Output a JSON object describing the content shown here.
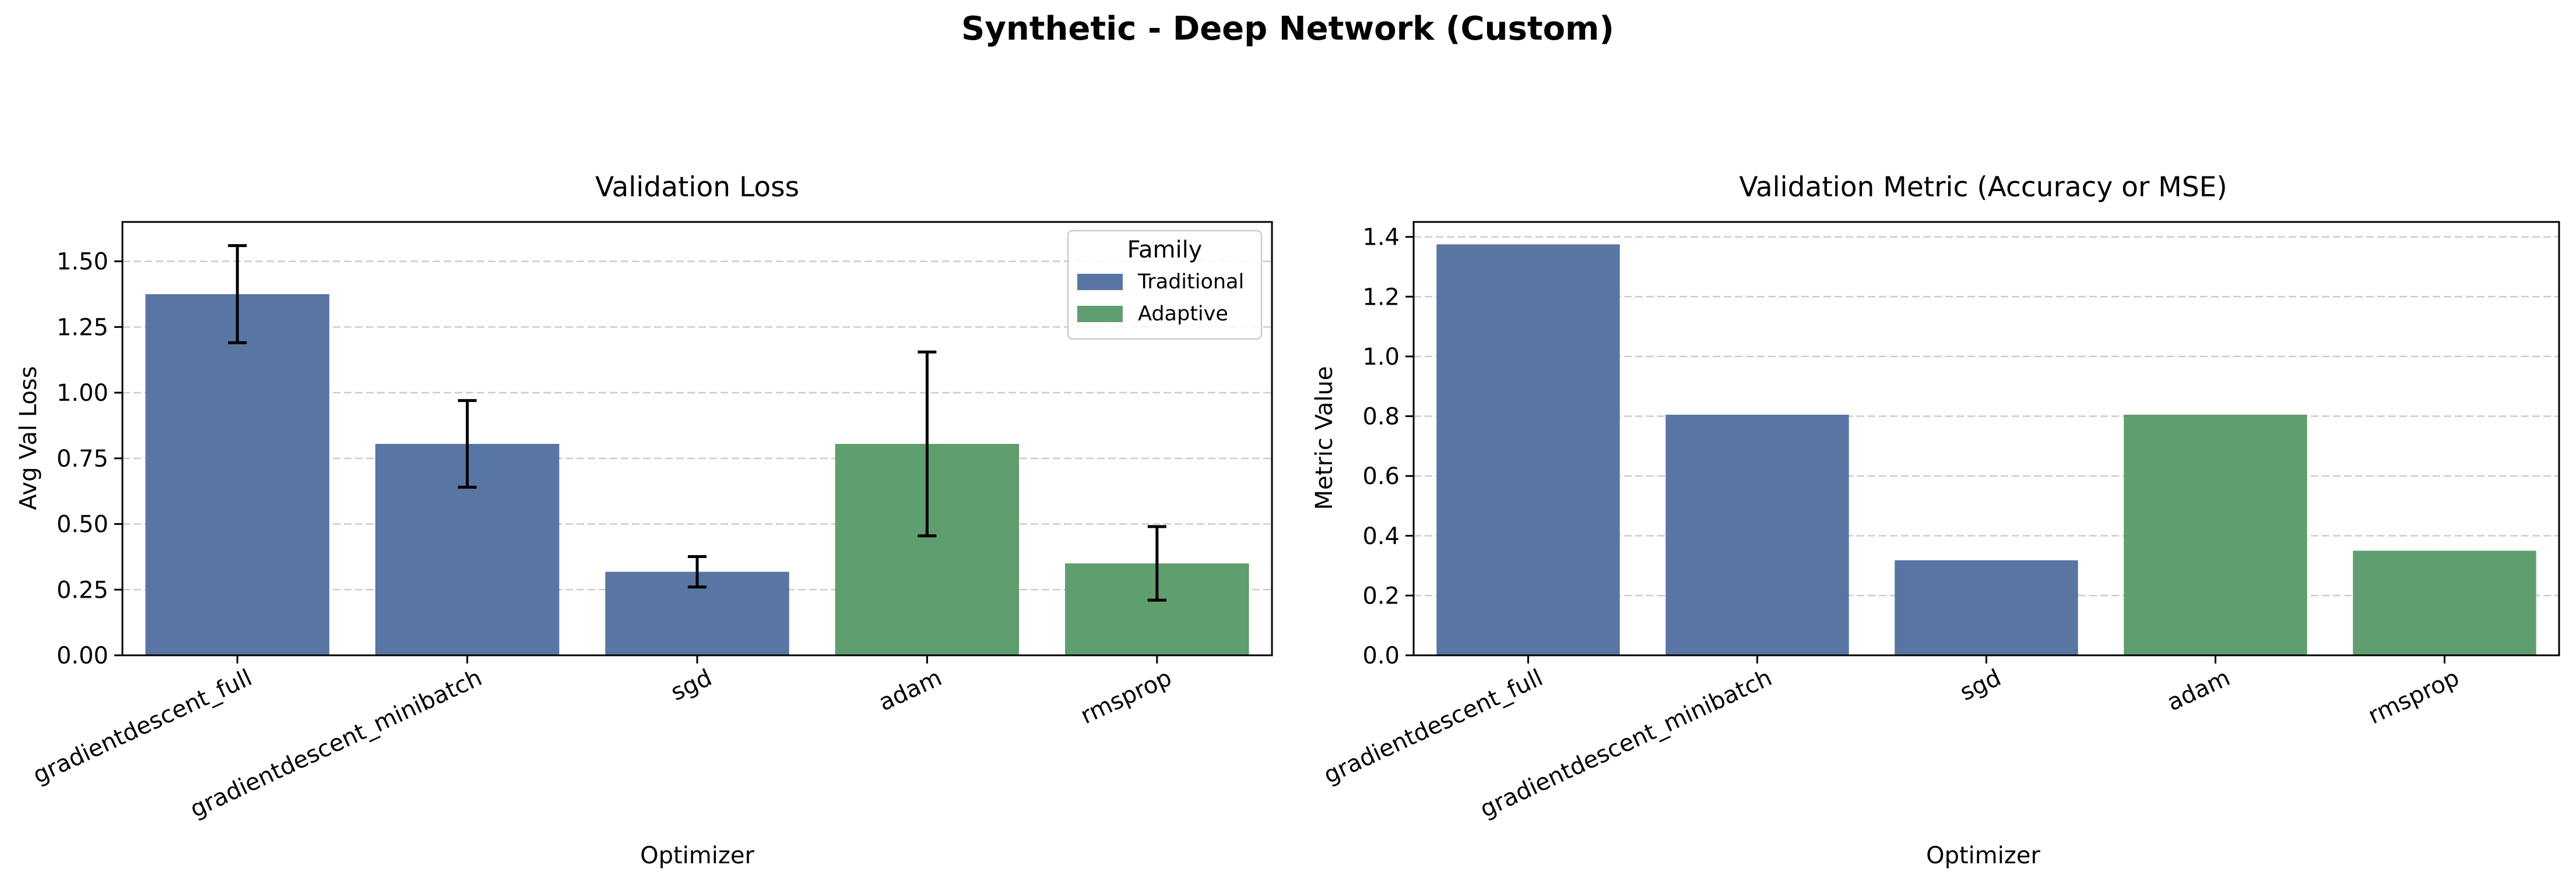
{
  "figure": {
    "title": "Synthetic - Deep Network (Custom)"
  },
  "colors": {
    "traditional": "#5975a4",
    "adaptive": "#5f9e6e",
    "grid": "#cccccc",
    "axis": "#000000"
  },
  "chart_data": [
    {
      "type": "bar",
      "title": "Validation Loss",
      "xlabel": "Optimizer",
      "ylabel": "Avg Val Loss",
      "categories": [
        "gradientdescent_full",
        "gradientdescent_minibatch",
        "sgd",
        "adam",
        "rmsprop"
      ],
      "families": [
        "Traditional",
        "Traditional",
        "Traditional",
        "Adaptive",
        "Adaptive"
      ],
      "values": [
        1.375,
        0.805,
        0.318,
        0.805,
        0.35
      ],
      "error_low": [
        1.19,
        0.64,
        0.26,
        0.455,
        0.21
      ],
      "error_high": [
        1.56,
        0.97,
        0.376,
        1.155,
        0.49
      ],
      "ylim": [
        0,
        1.65
      ],
      "yticks": [
        0.0,
        0.25,
        0.5,
        0.75,
        1.0,
        1.25,
        1.5
      ],
      "ytick_labels": [
        "0.00",
        "0.25",
        "0.50",
        "0.75",
        "1.00",
        "1.25",
        "1.50"
      ],
      "grid": "y-dashed",
      "legend": {
        "title": "Family",
        "placement": "top-right",
        "entries": [
          {
            "label": "Traditional",
            "family": "Traditional"
          },
          {
            "label": "Adaptive",
            "family": "Adaptive"
          }
        ]
      }
    },
    {
      "type": "bar",
      "title": "Validation Metric (Accuracy or MSE)",
      "xlabel": "Optimizer",
      "ylabel": "Metric Value",
      "categories": [
        "gradientdescent_full",
        "gradientdescent_minibatch",
        "sgd",
        "adam",
        "rmsprop"
      ],
      "families": [
        "Traditional",
        "Traditional",
        "Traditional",
        "Adaptive",
        "Adaptive"
      ],
      "values": [
        1.375,
        0.805,
        0.318,
        0.805,
        0.35
      ],
      "ylim": [
        0,
        1.45
      ],
      "yticks": [
        0.0,
        0.2,
        0.4,
        0.6,
        0.8,
        1.0,
        1.2,
        1.4
      ],
      "ytick_labels": [
        "0.0",
        "0.2",
        "0.4",
        "0.6",
        "0.8",
        "1.0",
        "1.2",
        "1.4"
      ],
      "grid": "y-dashed"
    }
  ]
}
